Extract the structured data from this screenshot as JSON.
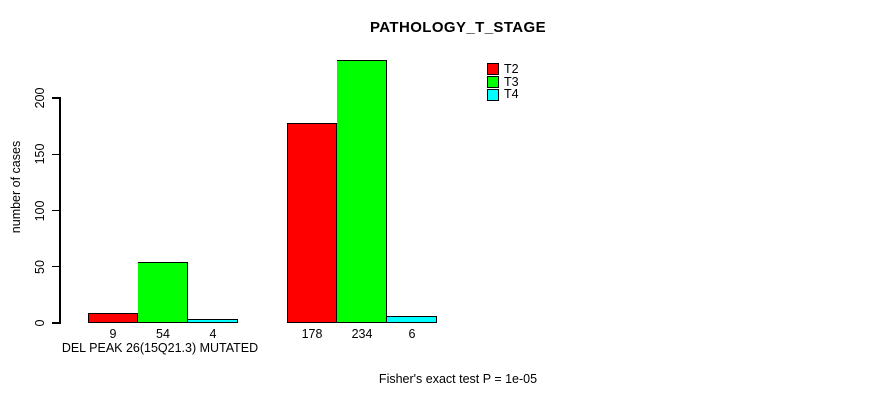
{
  "chart_data": {
    "type": "bar",
    "title": "PATHOLOGY_T_STAGE",
    "ylabel": "number of cases",
    "xlabel": "",
    "yticks": [
      0,
      50,
      100,
      150,
      200
    ],
    "ylim": [
      0,
      240
    ],
    "grid": false,
    "legend_position": "top-right",
    "categories": [
      "DEL PEAK 26(15Q21.3) MUTATED",
      ""
    ],
    "series": [
      {
        "name": "T2",
        "color": "#FF0000",
        "values": [
          9,
          178
        ]
      },
      {
        "name": "T3",
        "color": "#00FF00",
        "values": [
          54,
          234
        ]
      },
      {
        "name": "T4",
        "color": "#00FFFF",
        "values": [
          4,
          6
        ]
      }
    ],
    "bar_value_labels": [
      [
        9,
        54,
        4
      ],
      [
        178,
        234,
        6
      ]
    ],
    "footnote": "Fisher's exact test P = 1e-05"
  }
}
